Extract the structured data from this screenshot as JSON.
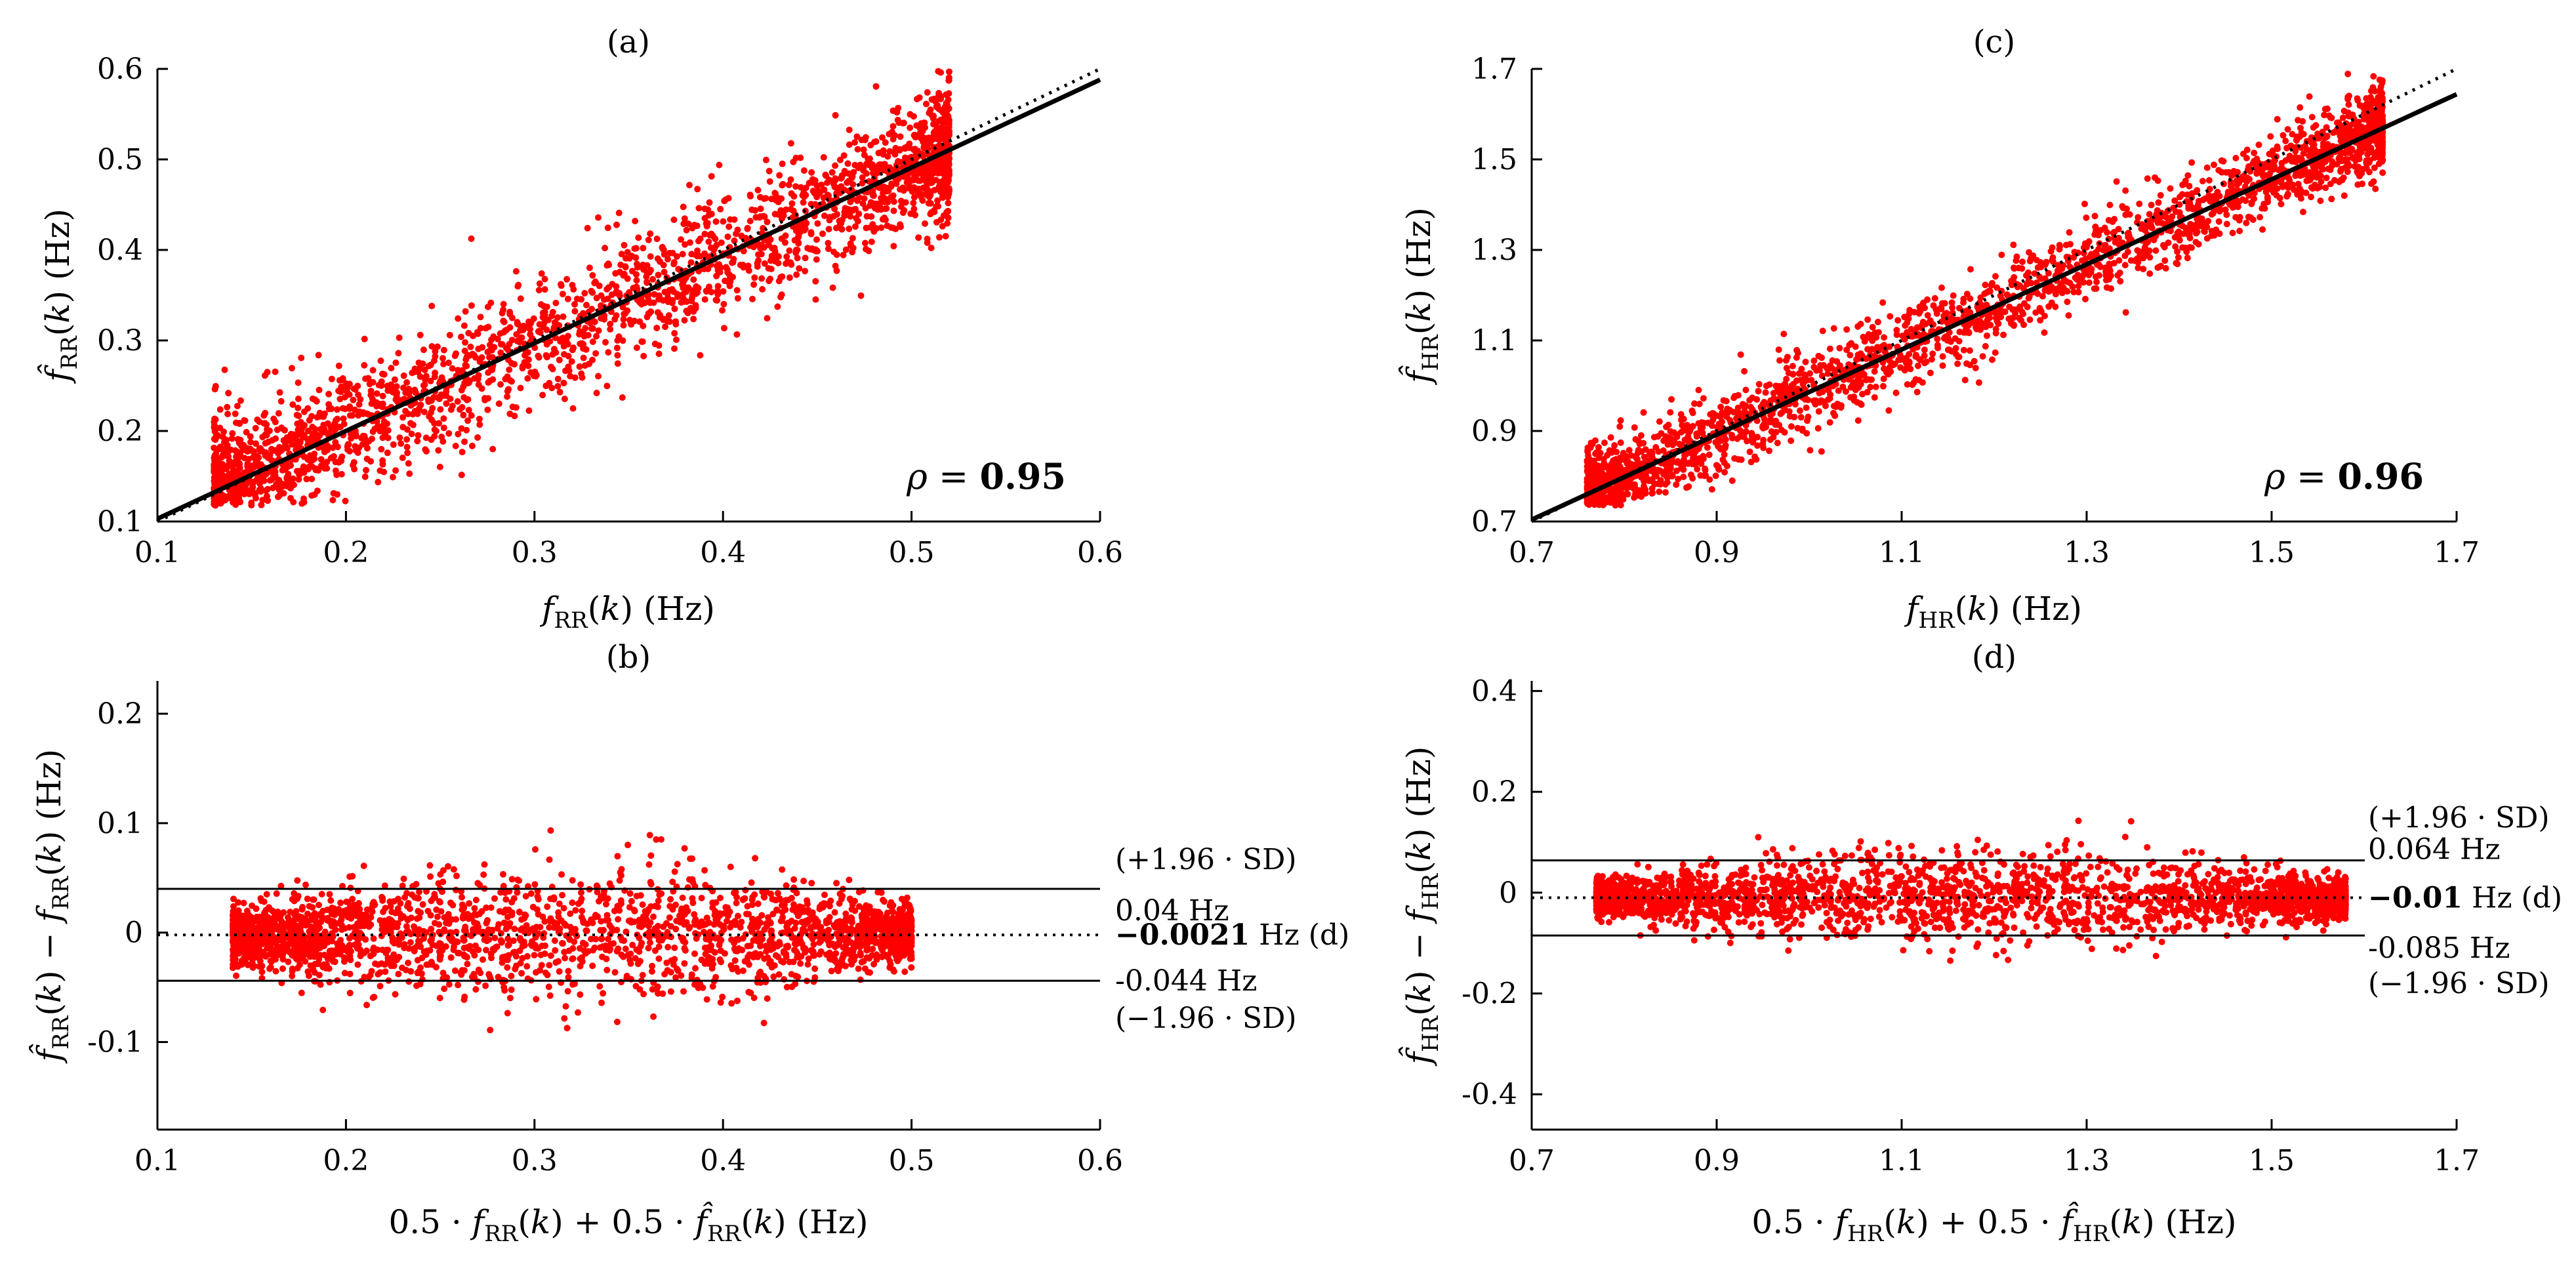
{
  "chart_data": [
    {
      "id": "a",
      "type": "scatter",
      "title": "(a)",
      "xlabel": "f_RR(k) (Hz)",
      "ylabel": "f̂_RR(k) (Hz)",
      "xlim": [
        0.1,
        0.6
      ],
      "ylim": [
        0.1,
        0.6
      ],
      "xticks": [
        "0.1",
        "0.2",
        "0.3",
        "0.4",
        "0.5",
        "0.6"
      ],
      "yticks": [
        "0.1",
        "0.2",
        "0.3",
        "0.4",
        "0.5",
        "0.6"
      ],
      "grid": false,
      "marker_color": "#ff0000",
      "cloud": {
        "x_range": [
          0.13,
          0.52
        ],
        "slope": 0.97,
        "intercept": 0.005,
        "spread_sd": 0.035
      },
      "fit_line": {
        "style": "solid",
        "color": "#000000",
        "slope": 0.97,
        "intercept": 0.006
      },
      "identity_line": {
        "style": "dotted",
        "color": "#000000",
        "slope": 1.0,
        "intercept": 0.0
      },
      "annotation": {
        "symbol": "ρ = ",
        "value": "0.95"
      }
    },
    {
      "id": "b",
      "type": "scatter",
      "title": "(b)",
      "xlabel": "0.5 · f_RR(k) + 0.5 · f̂_RR(k) (Hz)",
      "ylabel": "f̂_RR(k) − f_RR(k) (Hz)",
      "xlim": [
        0.1,
        0.6
      ],
      "ylim": [
        -0.18,
        0.23
      ],
      "xticks": [
        "0.1",
        "0.2",
        "0.3",
        "0.4",
        "0.5",
        "0.6"
      ],
      "yticks": [
        "-0.1",
        "0",
        "0.1",
        "0.2"
      ],
      "ytick_values": [
        -0.1,
        0,
        0.1,
        0.2
      ],
      "grid": false,
      "marker_color": "#ff0000",
      "cloud": {
        "x_range": [
          0.14,
          0.5
        ],
        "spread_sd": 0.03
      },
      "limits": {
        "upper": {
          "value": 0.04,
          "value_label": "0.04 Hz",
          "label": "(+1.96 · SD)"
        },
        "mean": {
          "value": -0.0021,
          "value_label": "−0.0021",
          "unit": " Hz (d)"
        },
        "lower": {
          "value": -0.044,
          "value_label": "-0.044 Hz",
          "label": "(−1.96 · SD)"
        }
      }
    },
    {
      "id": "c",
      "type": "scatter",
      "title": "(c)",
      "xlabel": "f_HR(k) (Hz)",
      "ylabel": "f̂_HR(k) (Hz)",
      "xlim": [
        0.7,
        1.7
      ],
      "ylim": [
        0.7,
        1.7
      ],
      "xticks": [
        "0.7",
        "0.9",
        "1.1",
        "1.3",
        "1.5",
        "1.7"
      ],
      "yticks": [
        "0.7",
        "0.9",
        "1.1",
        "1.3",
        "1.5",
        "1.7"
      ],
      "grid": false,
      "marker_color": "#ff0000",
      "cloud": {
        "x_range": [
          0.76,
          1.62
        ],
        "slope": 0.95,
        "intercept": 0.035,
        "spread_sd": 0.045
      },
      "fit_line": {
        "style": "solid",
        "color": "#000000",
        "slope": 0.94,
        "intercept": 0.046
      },
      "identity_line": {
        "style": "dotted",
        "color": "#000000",
        "slope": 1.0,
        "intercept": 0.0
      },
      "annotation": {
        "symbol": "ρ = ",
        "value": "0.96"
      }
    },
    {
      "id": "d",
      "type": "scatter",
      "title": "(d)",
      "xlabel": "0.5 · f_HR(k) + 0.5 · f̂_HR(k) (Hz)",
      "ylabel": "f̂_HR(k) − f_HR(k) (Hz)",
      "xlim": [
        0.7,
        1.7
      ],
      "ylim": [
        -0.47,
        0.42
      ],
      "xticks": [
        "0.7",
        "0.9",
        "1.1",
        "1.3",
        "1.5",
        "1.7"
      ],
      "yticks": [
        "-0.4",
        "-0.2",
        "0",
        "0.2",
        "0.4"
      ],
      "ytick_values": [
        -0.4,
        -0.2,
        0,
        0.2,
        0.4
      ],
      "grid": false,
      "marker_color": "#ff0000",
      "cloud": {
        "x_range": [
          0.77,
          1.58
        ],
        "spread_sd": 0.045
      },
      "limits": {
        "upper": {
          "value": 0.064,
          "value_label": "0.064 Hz",
          "label": "(+1.96 · SD)"
        },
        "mean": {
          "value": -0.01,
          "value_label": "−0.01",
          "unit": " Hz (d)"
        },
        "lower": {
          "value": -0.085,
          "value_label": "-0.085 Hz",
          "label": "(−1.96 · SD)"
        }
      }
    }
  ]
}
